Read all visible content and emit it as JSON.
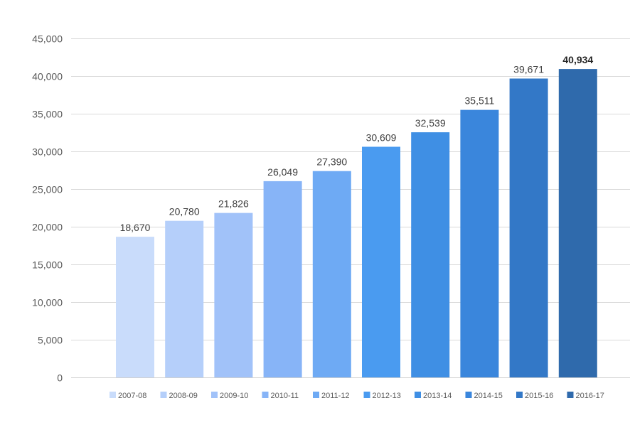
{
  "chart_data": {
    "type": "bar",
    "title": "",
    "xlabel": "",
    "ylabel": "",
    "ylim": [
      0,
      45000
    ],
    "yticks": [
      0,
      5000,
      10000,
      15000,
      20000,
      25000,
      30000,
      35000,
      40000,
      45000
    ],
    "ytick_labels": [
      "0",
      "5,000",
      "10,000",
      "15,000",
      "20,000",
      "25,000",
      "30,000",
      "35,000",
      "40,000",
      "45,000"
    ],
    "grid": "horizontal",
    "legend_position": "bottom",
    "categories": [
      "2007-08",
      "2008-09",
      "2009-10",
      "2010-11",
      "2011-12",
      "2012-13",
      "2013-14",
      "2014-15",
      "2015-16",
      "2016-17"
    ],
    "values": [
      18670,
      20780,
      21826,
      26049,
      27390,
      30609,
      32539,
      35511,
      39671,
      40934
    ],
    "value_labels": [
      "18,670",
      "20,780",
      "21,826",
      "26,049",
      "27,390",
      "30,609",
      "32,539",
      "35,511",
      "39,671",
      "40,934"
    ],
    "colors": [
      "#c9dcfb",
      "#b5cffa",
      "#a1c2f9",
      "#87b4f7",
      "#6eaaf4",
      "#4a9bf0",
      "#3f8fe4",
      "#3a86dc",
      "#3378c7",
      "#2f6aac"
    ],
    "emphasized_category": "2016-17"
  }
}
